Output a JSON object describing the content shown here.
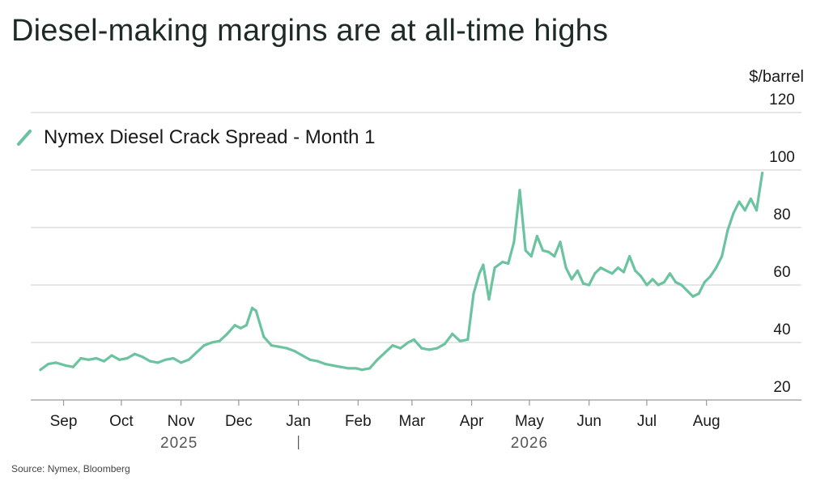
{
  "title": "Diesel-making margins are at all-time highs",
  "source": "Source: Nymex, Bloomberg",
  "colors": {
    "series": "#6cc3a0",
    "grid": "#d6d6d6",
    "axis": "#9a9a9a"
  },
  "chart_data": {
    "type": "line",
    "title": "Diesel-making margins are at all-time highs",
    "ylabel": "$/barrel",
    "ylim": [
      20,
      120
    ],
    "yticks": [
      20,
      40,
      60,
      80,
      100,
      120
    ],
    "y_axis_side": "right",
    "grid": true,
    "legend_position": "top-left",
    "x_tick_labels": [
      {
        "label": "Sep",
        "date": "2025-09-01"
      },
      {
        "label": "Oct",
        "date": "2025-10-01"
      },
      {
        "label": "Nov",
        "date": "2025-11-01"
      },
      {
        "label": "Dec",
        "date": "2025-12-01"
      },
      {
        "label": "Jan",
        "date": "2026-01-01"
      },
      {
        "label": "Feb",
        "date": "2026-02-01"
      },
      {
        "label": "Mar",
        "date": "2026-03-01"
      },
      {
        "label": "Apr",
        "date": "2026-04-01"
      },
      {
        "label": "May",
        "date": "2026-05-01"
      },
      {
        "label": "Jun",
        "date": "2026-06-01"
      },
      {
        "label": "Jul",
        "date": "2026-07-01"
      },
      {
        "label": "Aug",
        "date": "2026-08-01"
      }
    ],
    "year_labels": [
      {
        "label": "2025",
        "date": "2025-10-31"
      },
      {
        "label": "2026",
        "date": "2026-05-01"
      }
    ],
    "year_divider_date": "2026-01-01",
    "x_range": [
      "2025-08-20",
      "2026-08-31"
    ],
    "series": [
      {
        "name": "Nymex Diesel Crack Spread - Month 1",
        "points": [
          [
            "2025-08-20",
            30.5
          ],
          [
            "2025-08-24",
            32.5
          ],
          [
            "2025-08-28",
            33.0
          ],
          [
            "2025-09-02",
            32.0
          ],
          [
            "2025-09-06",
            31.5
          ],
          [
            "2025-09-10",
            34.5
          ],
          [
            "2025-09-14",
            34.0
          ],
          [
            "2025-09-18",
            34.5
          ],
          [
            "2025-09-22",
            33.5
          ],
          [
            "2025-09-26",
            35.5
          ],
          [
            "2025-09-30",
            34.0
          ],
          [
            "2025-10-04",
            34.5
          ],
          [
            "2025-10-08",
            36.0
          ],
          [
            "2025-10-12",
            35.0
          ],
          [
            "2025-10-16",
            33.5
          ],
          [
            "2025-10-20",
            33.0
          ],
          [
            "2025-10-24",
            34.0
          ],
          [
            "2025-10-28",
            34.5
          ],
          [
            "2025-11-01",
            33.0
          ],
          [
            "2025-11-05",
            34.0
          ],
          [
            "2025-11-09",
            36.5
          ],
          [
            "2025-11-13",
            39.0
          ],
          [
            "2025-11-17",
            40.0
          ],
          [
            "2025-11-21",
            40.5
          ],
          [
            "2025-11-25",
            43.0
          ],
          [
            "2025-11-29",
            46.0
          ],
          [
            "2025-12-02",
            45.0
          ],
          [
            "2025-12-05",
            46.0
          ],
          [
            "2025-12-08",
            52.0
          ],
          [
            "2025-12-10",
            51.0
          ],
          [
            "2025-12-14",
            42.0
          ],
          [
            "2025-12-18",
            39.0
          ],
          [
            "2025-12-22",
            38.5
          ],
          [
            "2025-12-26",
            38.0
          ],
          [
            "2025-12-30",
            37.0
          ],
          [
            "2026-01-03",
            35.5
          ],
          [
            "2026-01-07",
            34.0
          ],
          [
            "2026-01-11",
            33.5
          ],
          [
            "2026-01-15",
            32.5
          ],
          [
            "2026-01-19",
            32.0
          ],
          [
            "2026-01-23",
            31.5
          ],
          [
            "2026-01-27",
            31.0
          ],
          [
            "2026-01-31",
            31.0
          ],
          [
            "2026-02-03",
            30.5
          ],
          [
            "2026-02-07",
            31.0
          ],
          [
            "2026-02-11",
            34.0
          ],
          [
            "2026-02-15",
            36.5
          ],
          [
            "2026-02-19",
            39.0
          ],
          [
            "2026-02-23",
            38.0
          ],
          [
            "2026-02-27",
            40.0
          ],
          [
            "2026-03-02",
            41.0
          ],
          [
            "2026-03-06",
            38.0
          ],
          [
            "2026-03-10",
            37.5
          ],
          [
            "2026-03-14",
            38.0
          ],
          [
            "2026-03-18",
            39.5
          ],
          [
            "2026-03-22",
            43.0
          ],
          [
            "2026-03-26",
            40.5
          ],
          [
            "2026-03-30",
            41.0
          ],
          [
            "2026-04-02",
            57.0
          ],
          [
            "2026-04-05",
            64.0
          ],
          [
            "2026-04-07",
            67.0
          ],
          [
            "2026-04-10",
            55.0
          ],
          [
            "2026-04-13",
            66.0
          ],
          [
            "2026-04-17",
            68.0
          ],
          [
            "2026-04-20",
            67.5
          ],
          [
            "2026-04-23",
            75.0
          ],
          [
            "2026-04-26",
            93.0
          ],
          [
            "2026-04-29",
            72.0
          ],
          [
            "2026-05-02",
            70.0
          ],
          [
            "2026-05-05",
            77.0
          ],
          [
            "2026-05-08",
            72.0
          ],
          [
            "2026-05-11",
            71.5
          ],
          [
            "2026-05-14",
            70.0
          ],
          [
            "2026-05-17",
            75.0
          ],
          [
            "2026-05-20",
            66.0
          ],
          [
            "2026-05-23",
            62.0
          ],
          [
            "2026-05-26",
            65.0
          ],
          [
            "2026-05-29",
            60.5
          ],
          [
            "2026-06-01",
            60.0
          ],
          [
            "2026-06-04",
            64.0
          ],
          [
            "2026-06-07",
            66.0
          ],
          [
            "2026-06-10",
            65.0
          ],
          [
            "2026-06-13",
            64.0
          ],
          [
            "2026-06-16",
            66.0
          ],
          [
            "2026-06-19",
            64.5
          ],
          [
            "2026-06-22",
            70.0
          ],
          [
            "2026-06-25",
            65.0
          ],
          [
            "2026-06-28",
            63.0
          ],
          [
            "2026-07-01",
            60.0
          ],
          [
            "2026-07-04",
            62.0
          ],
          [
            "2026-07-07",
            60.0
          ],
          [
            "2026-07-10",
            61.0
          ],
          [
            "2026-07-13",
            64.0
          ],
          [
            "2026-07-16",
            61.0
          ],
          [
            "2026-07-19",
            60.0
          ],
          [
            "2026-07-22",
            58.0
          ],
          [
            "2026-07-25",
            56.0
          ],
          [
            "2026-07-28",
            57.0
          ],
          [
            "2026-07-31",
            61.0
          ],
          [
            "2026-08-03",
            63.0
          ],
          [
            "2026-08-06",
            66.0
          ],
          [
            "2026-08-09",
            70.0
          ],
          [
            "2026-08-12",
            79.0
          ],
          [
            "2026-08-15",
            85.0
          ],
          [
            "2026-08-18",
            89.0
          ],
          [
            "2026-08-21",
            86.0
          ],
          [
            "2026-08-24",
            90.0
          ],
          [
            "2026-08-27",
            86.0
          ],
          [
            "2026-08-30",
            99.0
          ]
        ]
      }
    ]
  }
}
